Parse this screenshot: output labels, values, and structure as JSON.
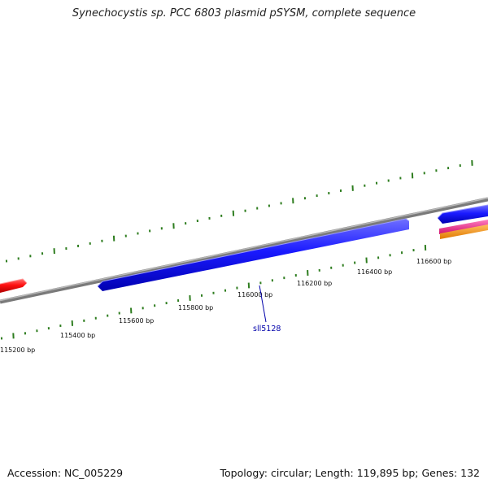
{
  "title": "Synechocystis sp. PCC 6803 plasmid pSYSM, complete sequence",
  "footer": {
    "accession": "Accession: NC_005229",
    "summary": "Topology: circular; Length: 119,895 bp; Genes: 132"
  },
  "ticks": {
    "labels": [
      "115200 bp",
      "115400 bp",
      "115600 bp",
      "115800 bp",
      "116000 bp",
      "116200 bp",
      "116400 bp",
      "116600 bp"
    ],
    "color": "#2e7d1f"
  },
  "genes": [
    {
      "id": "gene-red",
      "color": "#ff0000"
    },
    {
      "id": "sll5128",
      "label": "sll5128",
      "color": "#0000ee"
    },
    {
      "id": "gene-blue-right",
      "color": "#0000ee"
    },
    {
      "id": "gene-pink",
      "color": "#ee1c8c"
    },
    {
      "id": "gene-orange",
      "color": "#ff9900"
    }
  ],
  "colors": {
    "backbone": "#888888",
    "label": "#0000aa"
  }
}
